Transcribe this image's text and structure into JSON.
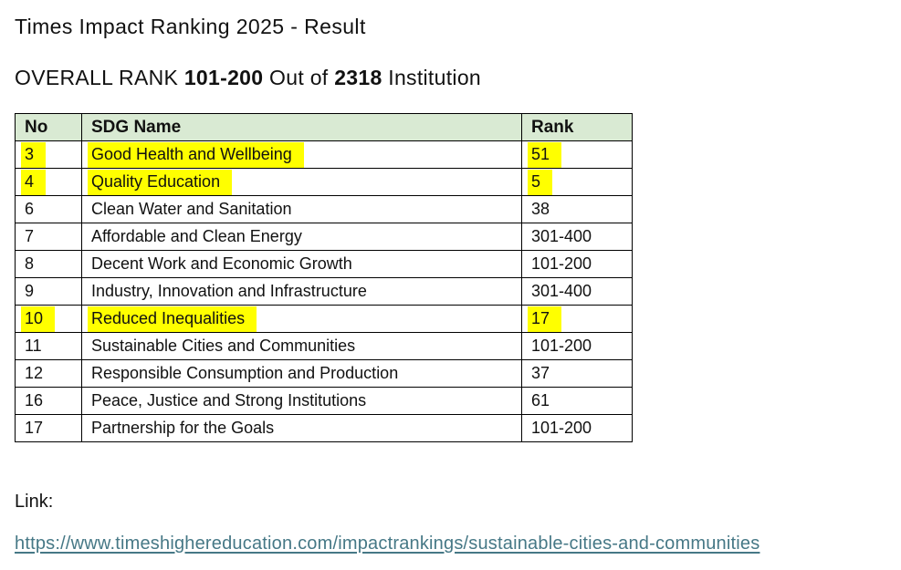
{
  "page": {
    "title": "Times Impact Ranking 2025 - Result",
    "subtitle": {
      "prefix": "OVERALL RANK ",
      "rank": "101-200",
      "middle": " Out of ",
      "total": "2318",
      "suffix": " Institution"
    }
  },
  "table": {
    "columns": [
      "No",
      "SDG Name",
      "Rank"
    ],
    "rows": [
      {
        "no": "3",
        "name": "Good Health and Wellbeing",
        "rank": "51",
        "highlighted": true
      },
      {
        "no": "4",
        "name": "Quality Education",
        "rank": "5",
        "highlighted": true
      },
      {
        "no": "6",
        "name": "Clean Water and Sanitation",
        "rank": "38",
        "highlighted": false
      },
      {
        "no": "7",
        "name": "Affordable and Clean Energy",
        "rank": "301-400",
        "highlighted": false
      },
      {
        "no": "8",
        "name": "Decent Work and Economic Growth",
        "rank": "101-200",
        "highlighted": false
      },
      {
        "no": "9",
        "name": "Industry, Innovation and Infrastructure",
        "rank": "301-400",
        "highlighted": false
      },
      {
        "no": "10",
        "name": "Reduced Inequalities",
        "rank": "17",
        "highlighted": true
      },
      {
        "no": "11",
        "name": "Sustainable Cities and Communities",
        "rank": "101-200",
        "highlighted": false
      },
      {
        "no": "12",
        "name": "Responsible Consumption and Production",
        "rank": "37",
        "highlighted": false
      },
      {
        "no": "16",
        "name": "Peace, Justice and Strong Institutions",
        "rank": "61",
        "highlighted": false
      },
      {
        "no": "17",
        "name": "Partnership for the Goals",
        "rank": "101-200",
        "highlighted": false
      }
    ]
  },
  "link": {
    "label": "Link:",
    "url_text": "https://www.timeshighereducation.com/impactrankings/sustainable-cities-and-communities"
  },
  "colors": {
    "header_bg": "#d9ead3",
    "highlight": "#ffff00",
    "link": "#467886"
  }
}
